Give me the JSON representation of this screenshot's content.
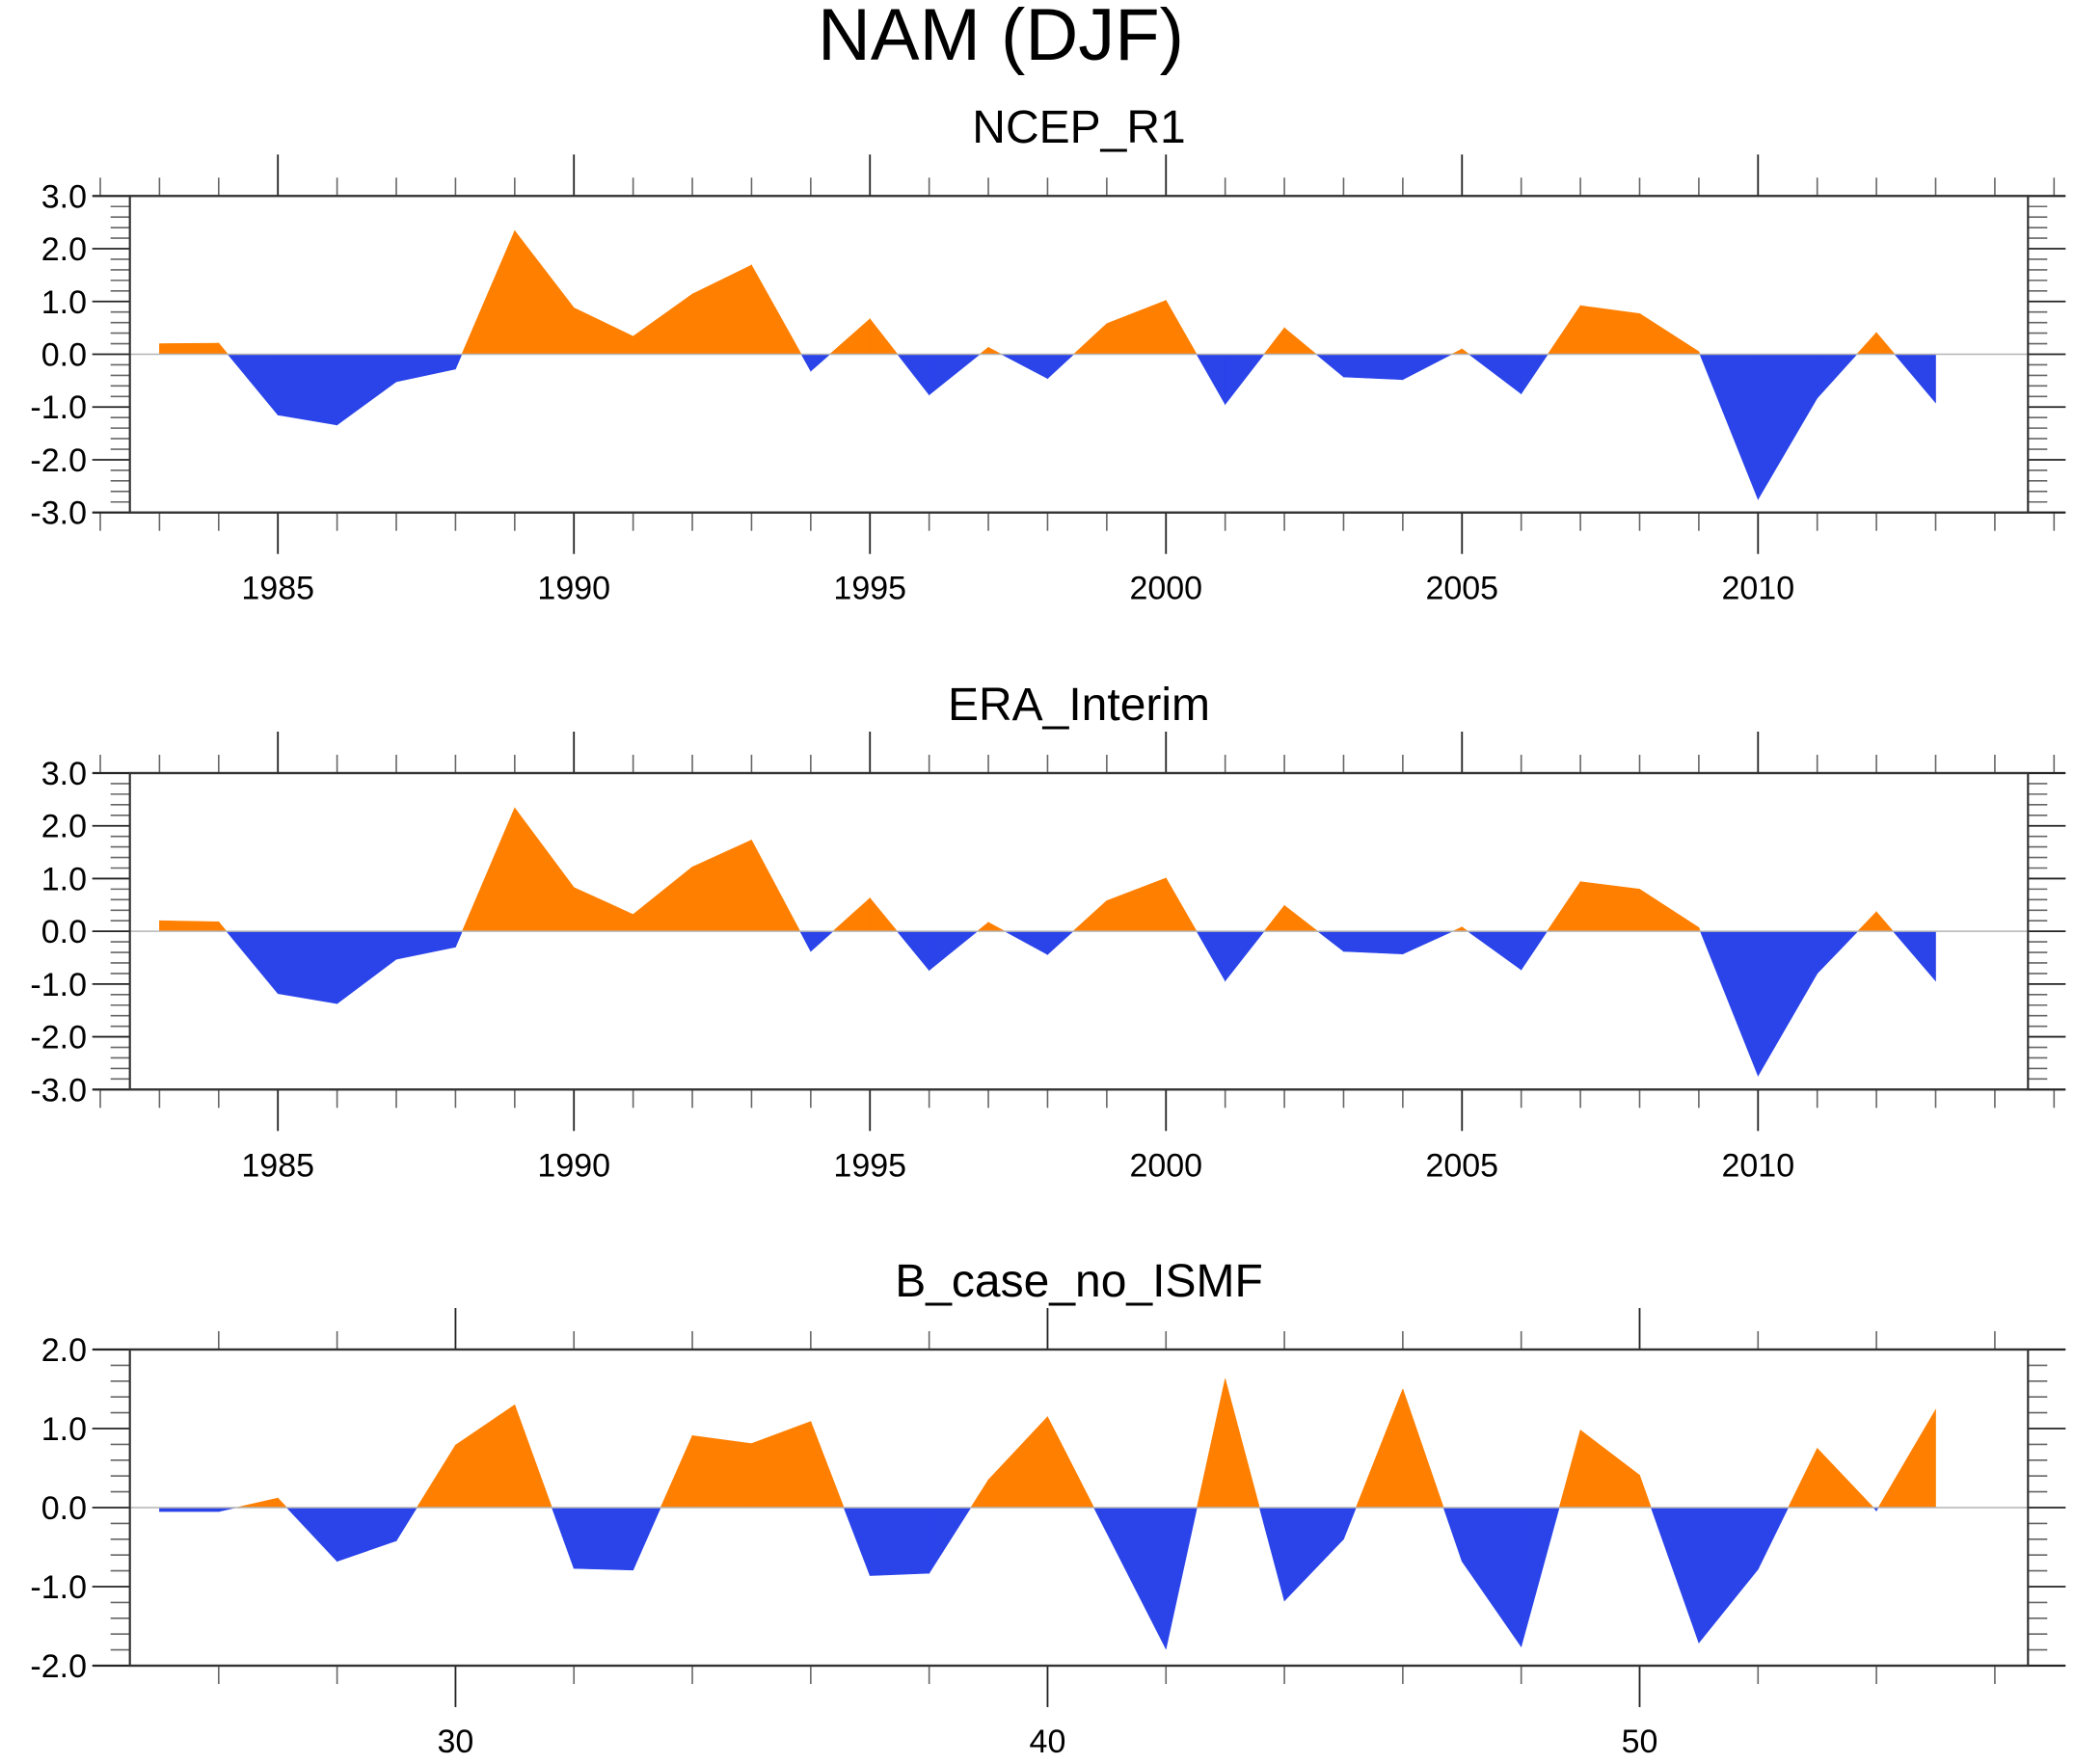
{
  "figure": {
    "title": "NAM (DJF)",
    "colors": {
      "positive": "#ff7f00",
      "negative": "#2a44ea",
      "zero_line": "#b4b4b4",
      "frame": "#333333"
    }
  },
  "chart_data": [
    {
      "type": "area",
      "title": "NCEP_R1",
      "xlabel": "",
      "ylabel": "",
      "x": [
        1983,
        1984,
        1985,
        1986,
        1987,
        1988,
        1989,
        1990,
        1991,
        1992,
        1993,
        1994,
        1995,
        1996,
        1997,
        1998,
        1999,
        2000,
        2001,
        2002,
        2003,
        2004,
        2005,
        2006,
        2007,
        2008,
        2009,
        2010,
        2011,
        2012,
        2013
      ],
      "values": [
        0.2,
        0.21,
        -1.15,
        -1.34,
        -0.52,
        -0.28,
        2.34,
        0.88,
        0.34,
        1.14,
        1.69,
        -0.32,
        0.67,
        -0.77,
        0.13,
        -0.46,
        0.58,
        1.02,
        -0.95,
        0.5,
        -0.43,
        -0.48,
        0.1,
        -0.75,
        0.92,
        0.77,
        0.05,
        -2.75,
        -0.83,
        0.41,
        -0.92
      ],
      "xlim": [
        1982.5,
        2014.56
      ],
      "ylim": [
        -3.0,
        3.0
      ],
      "xticks_major": [
        1985,
        1990,
        1995,
        2000,
        2005,
        2010
      ],
      "xtick_labels": [
        "1985",
        "1990",
        "1995",
        "2000",
        "2005",
        "2010"
      ],
      "xtick_minor_step": 1,
      "xtick_range": [
        1982,
        2015
      ],
      "yticks_major": [
        -3.0,
        -2.0,
        -1.0,
        0.0,
        1.0,
        2.0,
        3.0
      ],
      "ytick_labels": [
        "-3.0",
        "-2.0",
        "-1.0",
        "0.0",
        "1.0",
        "2.0",
        "3.0"
      ],
      "ytick_minor_step": 0.2,
      "fill_above_zero": "positive",
      "fill_below_zero": "negative",
      "grid": false
    },
    {
      "type": "area",
      "title": "ERA_Interim",
      "xlabel": "",
      "ylabel": "",
      "x": [
        1983,
        1984,
        1985,
        1986,
        1987,
        1988,
        1989,
        1990,
        1991,
        1992,
        1993,
        1994,
        1995,
        1996,
        1997,
        1998,
        1999,
        2000,
        2001,
        2002,
        2003,
        2004,
        2005,
        2006,
        2007,
        2008,
        2009,
        2010,
        2011,
        2012,
        2013
      ],
      "values": [
        0.2,
        0.18,
        -1.18,
        -1.37,
        -0.53,
        -0.3,
        2.34,
        0.83,
        0.32,
        1.22,
        1.73,
        -0.38,
        0.63,
        -0.74,
        0.17,
        -0.44,
        0.58,
        1.01,
        -0.94,
        0.49,
        -0.38,
        -0.43,
        0.08,
        -0.73,
        0.94,
        0.8,
        0.07,
        -2.74,
        -0.8,
        0.37,
        -0.94
      ],
      "xlim": [
        1982.5,
        2014.56
      ],
      "ylim": [
        -3.0,
        3.0
      ],
      "xticks_major": [
        1985,
        1990,
        1995,
        2000,
        2005,
        2010
      ],
      "xtick_labels": [
        "1985",
        "1990",
        "1995",
        "2000",
        "2005",
        "2010"
      ],
      "xtick_minor_step": 1,
      "xtick_range": [
        1982,
        2015
      ],
      "yticks_major": [
        -3.0,
        -2.0,
        -1.0,
        0.0,
        1.0,
        2.0,
        3.0
      ],
      "ytick_labels": [
        "-3.0",
        "-2.0",
        "-1.0",
        "0.0",
        "1.0",
        "2.0",
        "3.0"
      ],
      "ytick_minor_step": 0.2,
      "fill_above_zero": "positive",
      "fill_below_zero": "negative",
      "grid": false
    },
    {
      "type": "area",
      "title": "B_case_no_ISMF",
      "xlabel": "",
      "ylabel": "",
      "x": [
        25,
        26,
        27,
        28,
        29,
        30,
        31,
        32,
        33,
        34,
        35,
        36,
        37,
        38,
        39,
        40,
        41,
        42,
        43,
        44,
        45,
        46,
        47,
        48,
        49,
        50,
        51,
        52,
        53,
        54,
        55
      ],
      "values": [
        -0.05,
        -0.05,
        0.12,
        -0.68,
        -0.42,
        0.79,
        1.3,
        -0.77,
        -0.79,
        0.91,
        0.81,
        1.09,
        -0.86,
        -0.83,
        0.35,
        1.15,
        -0.32,
        -1.79,
        1.63,
        -1.18,
        -0.4,
        1.5,
        -0.68,
        -1.76,
        0.98,
        0.41,
        -1.71,
        -0.78,
        0.75,
        -0.04,
        1.24
      ],
      "xlim": [
        24.5,
        56.56
      ],
      "ylim": [
        -2.0,
        2.0
      ],
      "xticks_major": [
        30,
        40,
        50
      ],
      "xtick_labels": [
        "30",
        "40",
        "50"
      ],
      "xtick_minor_step": 2,
      "xtick_range": [
        26,
        56
      ],
      "yticks_major": [
        -2.0,
        -1.0,
        0.0,
        1.0,
        2.0
      ],
      "ytick_labels": [
        "-2.0",
        "-1.0",
        "0.0",
        "1.0",
        "2.0"
      ],
      "ytick_minor_step": 0.2,
      "fill_above_zero": "positive",
      "fill_below_zero": "negative",
      "grid": false
    }
  ]
}
